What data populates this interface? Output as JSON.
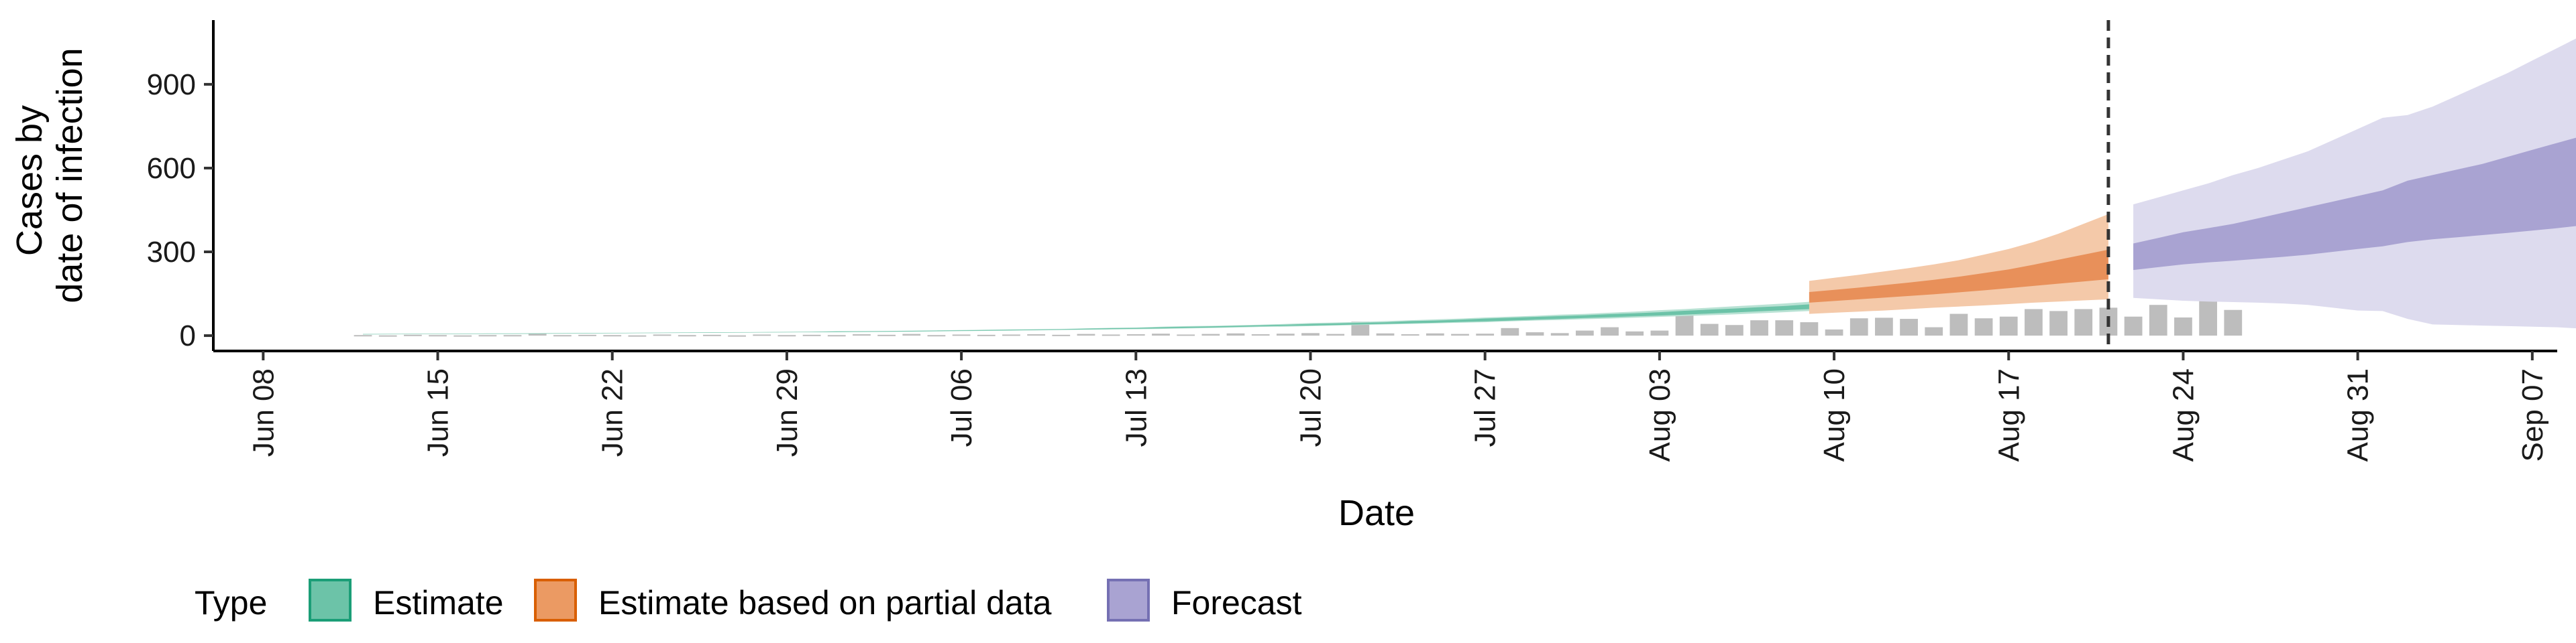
{
  "chart_data": {
    "type": "area",
    "xlabel": "Date",
    "ylabel_lines": [
      "Cases by",
      "date of infection"
    ],
    "ylim": [
      -55,
      1130
    ],
    "xlim_dates": [
      "2020-06-06",
      "2020-09-08"
    ],
    "y_ticks": [
      0,
      300,
      600,
      900
    ],
    "y_tick_labels": [
      "0",
      "300",
      "600",
      "900"
    ],
    "x_ticks": [
      "2020-06-08",
      "2020-06-15",
      "2020-06-22",
      "2020-06-29",
      "2020-07-06",
      "2020-07-13",
      "2020-07-20",
      "2020-07-27",
      "2020-08-03",
      "2020-08-10",
      "2020-08-17",
      "2020-08-24",
      "2020-08-31",
      "2020-09-07"
    ],
    "x_tick_labels": [
      "Jun 08",
      "Jun 15",
      "Jun 22",
      "Jun 29",
      "Jul 06",
      "Jul 13",
      "Jul 20",
      "Jul 27",
      "Aug 03",
      "Aug 10",
      "Aug 17",
      "Aug 24",
      "Aug 31",
      "Sep 07"
    ],
    "forecast_cutoff_date": "2020-08-21",
    "legend": {
      "title": "Type",
      "items": [
        {
          "label": "Estimate",
          "fill": "#6cc3a8",
          "stroke": "#1b9e77"
        },
        {
          "label": "Estimate based on partial data",
          "fill": "#eb9a63",
          "stroke": "#d95f02"
        },
        {
          "label": "Forecast",
          "fill": "#a9a3d2",
          "stroke": "#7570b3"
        }
      ]
    },
    "colors": {
      "bars": "#bdbdbd",
      "estimate_outer": "#b9e2d4",
      "estimate_inner": "#6cc3a8",
      "partial_outer": "#f4c9a9",
      "partial_inner": "#e8905a",
      "forecast_outer": "#dddbee",
      "forecast_inner": "#a9a3d2",
      "cutoff_line": "#333333"
    },
    "reported_cases": {
      "start_date": "2020-06-12",
      "values": [
        2,
        1,
        3,
        2,
        1,
        2,
        2,
        8,
        2,
        3,
        2,
        1,
        4,
        2,
        3,
        1,
        4,
        2,
        3,
        2,
        5,
        3,
        6,
        2,
        4,
        3,
        4,
        5,
        3,
        6,
        4,
        5,
        7,
        4,
        6,
        8,
        5,
        7,
        9,
        6,
        50,
        8,
        5,
        8,
        6,
        7,
        27,
        12,
        9,
        18,
        30,
        15,
        18,
        88,
        42,
        38,
        55,
        55,
        48,
        22,
        62,
        64,
        60,
        30,
        78,
        62,
        68,
        95,
        88,
        95,
        100,
        68,
        110,
        65,
        175,
        92
      ]
    },
    "series": [
      {
        "name": "Estimate",
        "start_date": "2020-06-12",
        "median": [
          5,
          5.5,
          6,
          6,
          6.5,
          7,
          7,
          7.5,
          8,
          8.5,
          9,
          9.5,
          10,
          10.5,
          11,
          11.5,
          12,
          12.5,
          13,
          14,
          14.5,
          15,
          16,
          17,
          18,
          19,
          20,
          21,
          22,
          23.5,
          25,
          26,
          28,
          29.5,
          31,
          33,
          35,
          37,
          39,
          41,
          43,
          45,
          48,
          50,
          53,
          56,
          59,
          62,
          65,
          68,
          71,
          74,
          78,
          82,
          86,
          90,
          94,
          98,
          103,
          108,
          114,
          120,
          127
        ],
        "lower50": [
          4.5,
          5,
          5.5,
          5.5,
          6,
          6.5,
          6.5,
          7,
          7.5,
          8,
          8.5,
          9,
          9.5,
          10,
          10.5,
          11,
          11.5,
          12,
          12.5,
          13,
          13.5,
          14,
          15,
          16,
          17,
          18,
          19,
          20,
          21,
          22,
          23.5,
          24.5,
          26,
          27.5,
          29,
          31,
          33,
          35,
          36,
          38,
          40,
          42,
          44,
          46,
          49,
          51,
          54,
          57,
          60,
          63,
          66,
          69,
          72,
          75,
          79,
          83,
          87,
          91,
          95,
          100,
          105,
          110,
          116
        ],
        "upper50": [
          5.5,
          6,
          6.5,
          6.5,
          7,
          7.5,
          7.5,
          8,
          8.5,
          9,
          9.5,
          10,
          10.5,
          11,
          11.5,
          12,
          12.5,
          13,
          13.5,
          15,
          15.5,
          16,
          17,
          18,
          19,
          20,
          21,
          22,
          23,
          25,
          26.5,
          27.5,
          30,
          31.5,
          33,
          35,
          37,
          39,
          42,
          44,
          46,
          48,
          52,
          54,
          57,
          61,
          64,
          67,
          70,
          73,
          77,
          80,
          84,
          89,
          93,
          97,
          102,
          106,
          112,
          117,
          124,
          130,
          138
        ],
        "lower90": [
          4,
          4.5,
          5,
          5,
          5.5,
          6,
          6,
          6.5,
          7,
          7.5,
          8,
          8.5,
          9,
          9.5,
          10,
          10.5,
          11,
          11.5,
          12,
          12.5,
          13,
          13.5,
          14,
          15,
          16,
          17,
          18,
          19,
          20,
          21,
          22,
          23,
          24,
          25.5,
          27,
          29,
          31,
          32,
          34,
          36,
          38,
          40,
          42,
          44,
          46,
          48,
          51,
          54,
          56,
          59,
          61,
          64,
          67,
          70,
          73,
          76,
          80,
          84,
          88,
          92,
          96,
          101,
          106
        ],
        "upper90": [
          6,
          6.5,
          7,
          7,
          7.5,
          8,
          8,
          8.5,
          9,
          9.5,
          10,
          10.5,
          11,
          11.5,
          12,
          12.5,
          13,
          13.5,
          14,
          15.5,
          16,
          16.5,
          18,
          19,
          20,
          21,
          22,
          23,
          24,
          26,
          28,
          29,
          32,
          34,
          35,
          37,
          39,
          42,
          45,
          47,
          49,
          52,
          55,
          58,
          61,
          65,
          68,
          71,
          75,
          78,
          82,
          86,
          91,
          95,
          100,
          105,
          110,
          115,
          121,
          127,
          134,
          141,
          150
        ]
      },
      {
        "name": "Estimate based on partial data",
        "start_date": "2020-08-09",
        "median": [
          136,
          142,
          149,
          156,
          163,
          171,
          180,
          190,
          200,
          212,
          225,
          238,
          250
        ],
        "lower50": [
          118,
          124,
          130,
          136,
          142,
          148,
          155,
          162,
          170,
          178,
          186,
          194,
          202
        ],
        "upper50": [
          156,
          164,
          172,
          181,
          190,
          200,
          211,
          224,
          237,
          254,
          272,
          290,
          308
        ],
        "lower90": [
          78,
          82,
          86,
          90,
          95,
          100,
          104,
          108,
          113,
          118,
          122,
          126,
          130
        ],
        "upper90": [
          196,
          207,
          218,
          230,
          242,
          255,
          270,
          290,
          310,
          335,
          365,
          400,
          435
        ]
      },
      {
        "name": "Forecast",
        "start_date": "2020-08-22",
        "median": [
          305,
          320,
          335,
          350,
          365,
          380,
          395,
          410,
          430,
          450,
          470,
          490,
          510,
          530,
          550,
          570,
          590,
          610,
          630,
          660
        ],
        "lower50": [
          235,
          245,
          255,
          262,
          268,
          275,
          282,
          290,
          300,
          310,
          320,
          335,
          345,
          352,
          360,
          368,
          376,
          385,
          395,
          405
        ],
        "upper50": [
          330,
          350,
          370,
          385,
          400,
          420,
          440,
          460,
          480,
          500,
          520,
          555,
          575,
          595,
          615,
          640,
          665,
          690,
          715,
          740
        ],
        "lower90": [
          135,
          130,
          125,
          122,
          120,
          118,
          115,
          110,
          100,
          90,
          88,
          60,
          40,
          38,
          36,
          34,
          32,
          30,
          25,
          18
        ],
        "upper90": [
          470,
          495,
          520,
          545,
          575,
          600,
          630,
          660,
          700,
          740,
          780,
          790,
          820,
          860,
          900,
          940,
          985,
          1030,
          1075,
          1115
        ]
      }
    ]
  }
}
